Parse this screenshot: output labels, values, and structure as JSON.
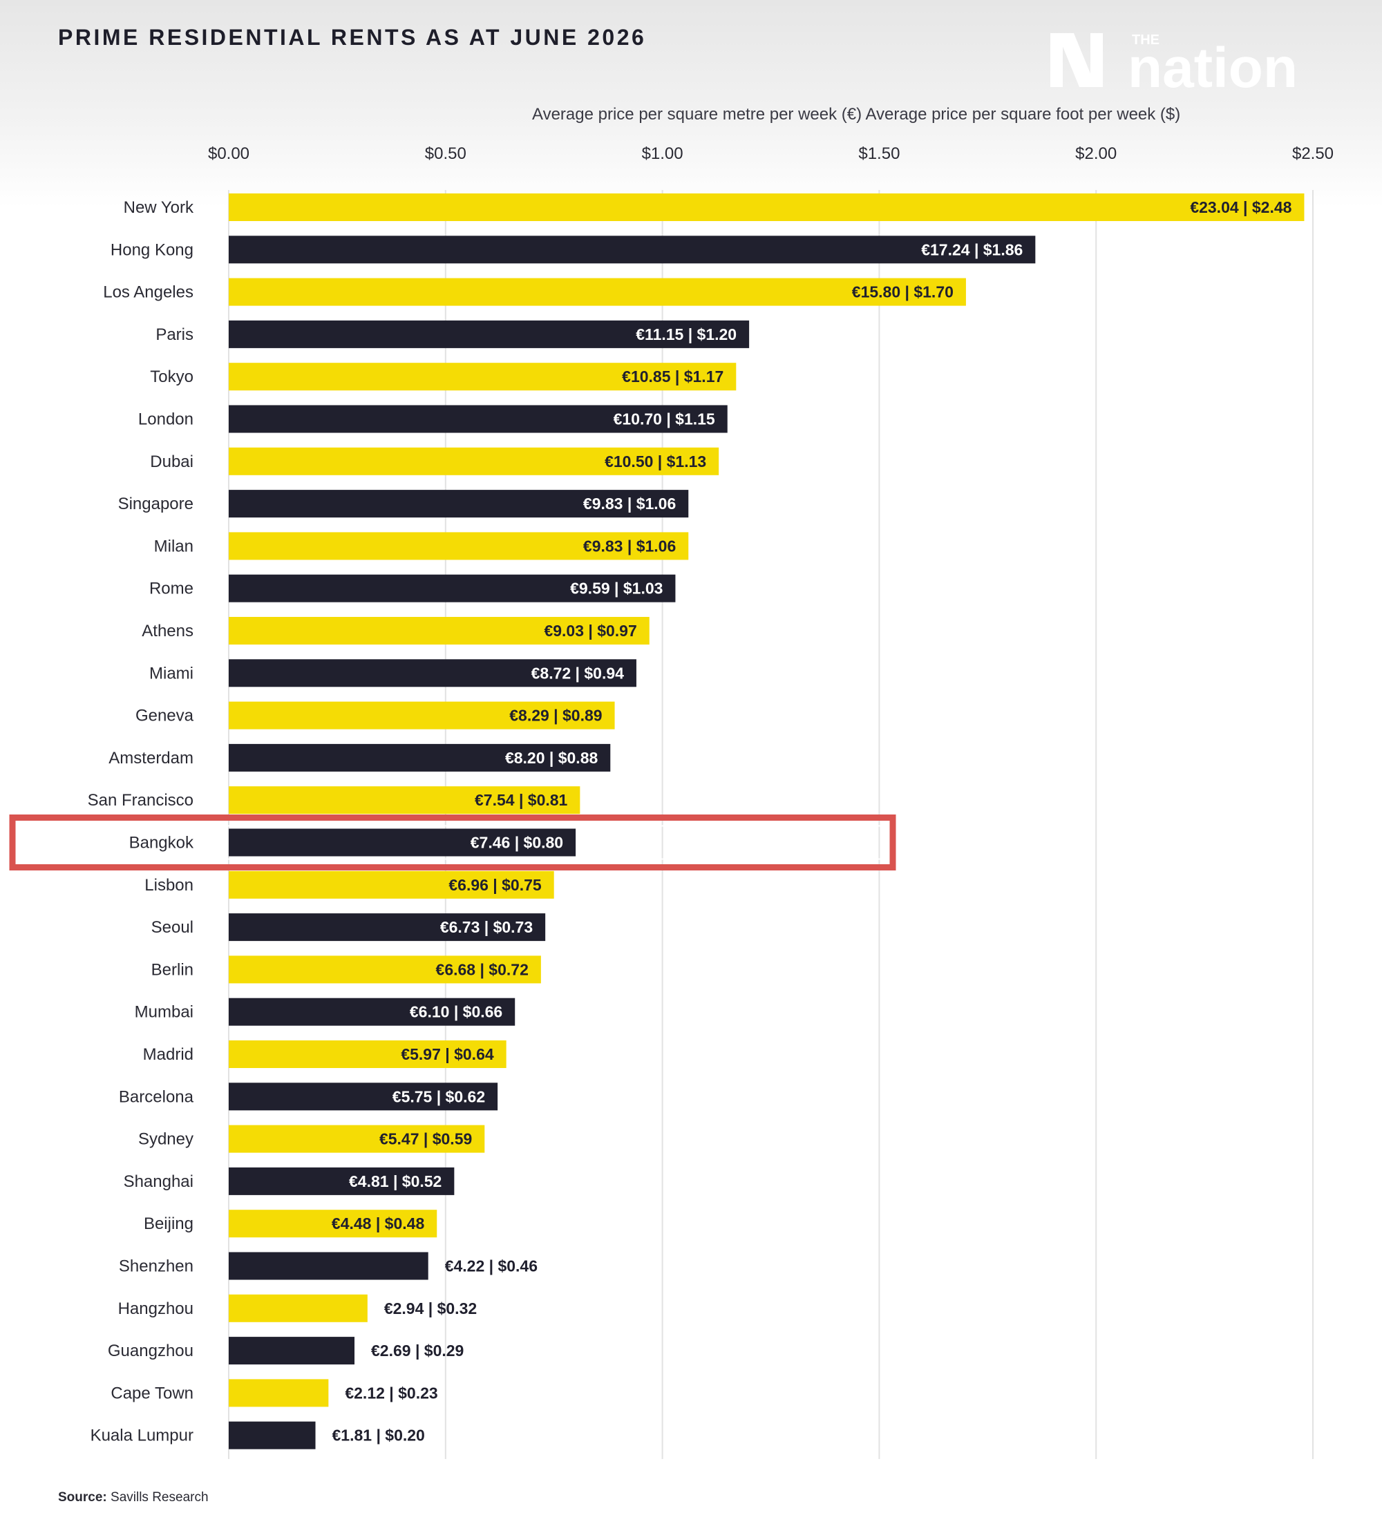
{
  "header": {
    "title": "PRIME RESIDENTIAL RENTS AS AT JUNE 2026",
    "logo_small": "THE",
    "logo_main": "nation"
  },
  "footer": {
    "source_label": "Source:",
    "source_text": "Savills Research"
  },
  "colors": {
    "yellow": "#f5dc05",
    "navy": "#20202e",
    "highlight": "#d9534f",
    "grid": "#e2e2e2"
  },
  "chart_data": {
    "type": "bar",
    "orientation": "horizontal",
    "title": "PRIME RESIDENTIAL RENTS AS AT JUNE 2026",
    "subtitle": "Average price per square metre per week (€) Average price per square foot per week ($)",
    "xlim": [
      0,
      2.5
    ],
    "x_ticks": [
      0,
      0.5,
      1.0,
      1.5,
      2.0,
      2.5
    ],
    "x_tick_labels": [
      "$0.00",
      "$0.50",
      "$1.00",
      "$1.50",
      "$2.00",
      "$2.50"
    ],
    "grid": true,
    "highlighted_category": "Bangkok",
    "categories": [
      "New York",
      "Hong Kong",
      "Los Angeles",
      "Paris",
      "Tokyo",
      "London",
      "Dubai",
      "Singapore",
      "Milan",
      "Rome",
      "Athens",
      "Miami",
      "Geneva",
      "Amsterdam",
      "San Francisco",
      "Bangkok",
      "Lisbon",
      "Seoul",
      "Berlin",
      "Mumbai",
      "Madrid",
      "Barcelona",
      "Sydney",
      "Shanghai",
      "Beijing",
      "Shenzhen",
      "Hangzhou",
      "Guangzhou",
      "Cape Town",
      "Kuala Lumpur"
    ],
    "series": [
      {
        "values_eur_sqm": [
          23.04,
          17.24,
          15.8,
          11.15,
          10.85,
          10.7,
          10.5,
          9.83,
          9.83,
          9.59,
          9.03,
          8.72,
          8.29,
          8.2,
          7.54,
          7.46,
          6.96,
          6.73,
          6.68,
          6.1,
          5.97,
          5.75,
          5.47,
          4.81,
          4.48,
          4.22,
          2.94,
          2.69,
          2.12,
          1.81
        ]
      },
      {
        "values_usd_sqft": [
          2.48,
          1.86,
          1.7,
          1.2,
          1.17,
          1.15,
          1.13,
          1.06,
          1.06,
          1.03,
          0.97,
          0.94,
          0.89,
          0.88,
          0.81,
          0.8,
          0.75,
          0.73,
          0.72,
          0.66,
          0.64,
          0.62,
          0.59,
          0.52,
          0.48,
          0.46,
          0.32,
          0.29,
          0.23,
          0.2
        ]
      }
    ],
    "data_labels": [
      "€23.04 | $2.48",
      "€17.24 | $1.86",
      "€15.80 | $1.70",
      "€11.15 | $1.20",
      "€10.85 | $1.17",
      "€10.70 | $1.15",
      "€10.50 | $1.13",
      "€9.83 | $1.06",
      "€9.83 | $1.06",
      "€9.59 | $1.03",
      "€9.03 | $0.97",
      "€8.72 | $0.94",
      "€8.29 | $0.89",
      "€8.20 | $0.88",
      "€7.54 | $0.81",
      "€7.46 | $0.80",
      "€6.96 | $0.75",
      "€6.73 | $0.73",
      "€6.68 | $0.72",
      "€6.10 | $0.66",
      "€5.97 | $0.64",
      "€5.75 | $0.62",
      "€5.47 | $0.59",
      "€4.81 | $0.52",
      "€4.48 | $0.48",
      "€4.22 | $0.46",
      "€2.94 | $0.32",
      "€2.69 | $0.29",
      "€2.12 | $0.23",
      "€1.81 | $0.20"
    ]
  }
}
